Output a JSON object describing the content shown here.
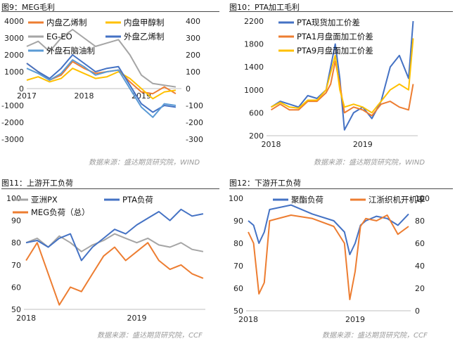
{
  "panels": [
    {
      "title": "图9：MEG毛利",
      "source": "数据来源：盛达期货研究院，WIND",
      "chart_data": {
        "type": "line",
        "title": "",
        "x_ticks": [
          "2017",
          "2018",
          "2019"
        ],
        "y_left": {
          "min": -3000,
          "max": 4000,
          "ticks": [
            -3000,
            -2000,
            -1000,
            0,
            1000,
            2000,
            3000,
            4000
          ]
        },
        "y_right": {
          "min": -300,
          "max": 400,
          "ticks": [
            -300,
            -200,
            -100,
            0,
            100,
            200,
            300,
            400
          ]
        },
        "legend_rows": [
          [
            "内盘乙烯制",
            "内盘甲醇制"
          ],
          [
            "EG-EO",
            "外盘乙烯制"
          ],
          [
            "外盘石脑油制"
          ]
        ],
        "x": [
          2017.0,
          2017.2,
          2017.4,
          2017.6,
          2017.8,
          2018.0,
          2018.2,
          2018.4,
          2018.6,
          2018.8,
          2019.0,
          2019.2,
          2019.4,
          2019.6
        ],
        "series": [
          {
            "name": "内盘乙烯制",
            "color": "#ed7d31",
            "axis": "left",
            "values": [
              1500,
              1000,
              500,
              800,
              1600,
              1200,
              900,
              1000,
              1100,
              400,
              -200,
              -300,
              100,
              -300
            ]
          },
          {
            "name": "内盘甲醇制",
            "color": "#ffc000",
            "axis": "left",
            "values": [
              500,
              700,
              400,
              600,
              1200,
              900,
              600,
              700,
              1000,
              600,
              0,
              -600,
              -200,
              -100
            ]
          },
          {
            "name": "EG-EO",
            "color": "#a5a5a5",
            "axis": "left",
            "values": [
              2500,
              2800,
              2200,
              3000,
              3500,
              3000,
              2500,
              2700,
              2900,
              2000,
              800,
              300,
              200,
              100
            ]
          },
          {
            "name": "外盘乙烯制",
            "color": "#4472c4",
            "axis": "right",
            "values": [
              150,
              100,
              60,
              120,
              200,
              150,
              100,
              120,
              130,
              20,
              -90,
              -140,
              -100,
              -110
            ]
          },
          {
            "name": "外盘石脑油制",
            "color": "#5b9bd5",
            "axis": "right",
            "values": [
              120,
              90,
              50,
              90,
              170,
              130,
              80,
              100,
              110,
              0,
              -110,
              -170,
              -90,
              -100
            ]
          }
        ]
      }
    },
    {
      "title": "图10：PTA加工毛利",
      "source": "数据来源：盛达期货研究院，WIND",
      "chart_data": {
        "type": "line",
        "title": "",
        "x_ticks": [
          "2018",
          "2019"
        ],
        "y_left": {
          "min": 200,
          "max": 2200,
          "ticks": [
            200,
            600,
            1000,
            1400,
            1800,
            2200
          ]
        },
        "legend_rows": [
          [
            "PTA现货加工价差"
          ],
          [
            "PTA1月盘面加工价差"
          ],
          [
            "PTA9月盘面加工价差"
          ]
        ],
        "x": [
          2018.0,
          2018.1,
          2018.2,
          2018.3,
          2018.4,
          2018.5,
          2018.6,
          2018.65,
          2018.7,
          2018.75,
          2018.8,
          2018.9,
          2019.0,
          2019.1,
          2019.2,
          2019.3,
          2019.4,
          2019.5,
          2019.55
        ],
        "series": [
          {
            "name": "PTA现货加工价差",
            "color": "#4472c4",
            "values": [
              700,
              800,
              750,
              700,
              900,
              850,
              1000,
              1400,
              1800,
              1200,
              300,
              600,
              700,
              500,
              800,
              1400,
              1600,
              1200,
              2200
            ]
          },
          {
            "name": "PTA1月盘面加工价差",
            "color": "#ed7d31",
            "values": [
              650,
              750,
              650,
              650,
              800,
              800,
              950,
              1100,
              1500,
              1100,
              600,
              700,
              650,
              550,
              750,
              800,
              700,
              650,
              1100
            ]
          },
          {
            "name": "PTA9月盘面加工价差",
            "color": "#ffc000",
            "values": [
              700,
              780,
              700,
              680,
              820,
              820,
              1000,
              1300,
              1600,
              1000,
              700,
              750,
              700,
              600,
              800,
              1000,
              1100,
              1000,
              1900
            ]
          }
        ]
      }
    },
    {
      "title": "图11：上游开工负荷",
      "source": "数据来源：盛达期货研究院，CCF",
      "chart_data": {
        "type": "line",
        "title": "",
        "x_ticks": [
          "2018",
          "2019"
        ],
        "y_left": {
          "min": 50,
          "max": 100,
          "ticks": [
            50,
            60,
            70,
            80,
            90,
            100
          ]
        },
        "legend_rows": [
          [
            "亚洲PX",
            "PTA负荷"
          ],
          [
            "MEG负荷（总）"
          ]
        ],
        "x": [
          2018.0,
          2018.1,
          2018.2,
          2018.3,
          2018.4,
          2018.5,
          2018.6,
          2018.7,
          2018.8,
          2018.9,
          2019.0,
          2019.1,
          2019.2,
          2019.3,
          2019.4,
          2019.5,
          2019.6
        ],
        "series": [
          {
            "name": "亚洲PX",
            "color": "#a5a5a5",
            "values": [
              80,
              82,
              78,
              83,
              80,
              76,
              79,
              81,
              84,
              82,
              80,
              82,
              79,
              78,
              80,
              77,
              76
            ]
          },
          {
            "name": "PTA负荷",
            "color": "#4472c4",
            "values": [
              80,
              81,
              78,
              82,
              84,
              72,
              78,
              82,
              86,
              84,
              88,
              91,
              94,
              90,
              95,
              92,
              93
            ]
          },
          {
            "name": "MEG负荷（总）",
            "color": "#ed7d31",
            "values": [
              72,
              80,
              66,
              52,
              60,
              58,
              66,
              74,
              78,
              72,
              76,
              80,
              72,
              68,
              70,
              66,
              64
            ]
          }
        ]
      }
    },
    {
      "title": "图12：下游开工负荷",
      "source": "数据来源：盛达期货研究院，CCF",
      "chart_data": {
        "type": "line",
        "title": "",
        "x_ticks": [
          "2018",
          "2019"
        ],
        "y_left": {
          "min": 50,
          "max": 100,
          "ticks": [
            50,
            60,
            70,
            80,
            90,
            100
          ]
        },
        "y_right": {
          "min": 0,
          "max": 100,
          "ticks": [
            0,
            20,
            40,
            60,
            80,
            100
          ]
        },
        "legend_rows": [
          [
            "聚酯负荷",
            "江浙织机开机率"
          ]
        ],
        "x": [
          2018.0,
          2018.05,
          2018.1,
          2018.15,
          2018.2,
          2018.4,
          2018.6,
          2018.8,
          2018.9,
          2018.95,
          2019.0,
          2019.05,
          2019.1,
          2019.2,
          2019.3,
          2019.4,
          2019.5
        ],
        "series": [
          {
            "name": "聚酯负荷",
            "color": "#4472c4",
            "axis": "left",
            "values": [
              90,
              88,
              80,
              85,
              95,
              97,
              93,
              90,
              85,
              75,
              80,
              88,
              90,
              92,
              91,
              88,
              93
            ]
          },
          {
            "name": "江浙织机开机率",
            "color": "#ed7d31",
            "axis": "right",
            "values": [
              70,
              60,
              15,
              25,
              80,
              85,
              82,
              75,
              60,
              10,
              35,
              75,
              82,
              80,
              85,
              68,
              75
            ]
          }
        ]
      }
    }
  ]
}
